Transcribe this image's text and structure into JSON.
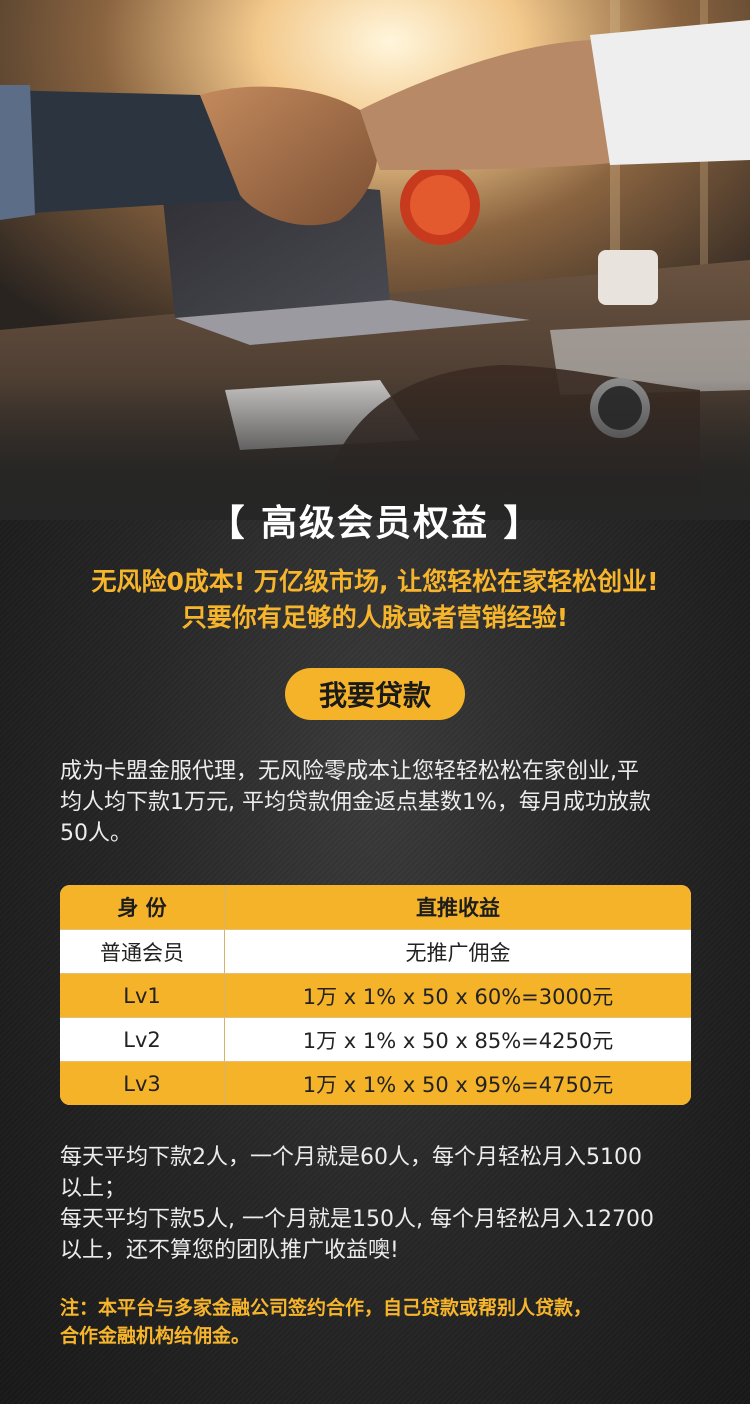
{
  "header": {
    "title": "【 高级会员权益 】",
    "slogan_line1": "无风险0成本! 万亿级市场, 让您轻松在家轻松创业!",
    "slogan_line2": "只要你有足够的人脉或者营销经验!"
  },
  "cta": {
    "label": "我要贷款"
  },
  "intro": {
    "line1": "成为卡盟金服代理，无风险零成本让您轻轻松松在家创业,平",
    "line2": "均人均下款1万元, 平均贷款佣金返点基数1%，每月成功放款",
    "line3": "50人。"
  },
  "table": {
    "headers": [
      "身 份",
      "直推收益"
    ],
    "rows": [
      [
        "普通会员",
        "无推广佣金"
      ],
      [
        "Lv1",
        "1万 x 1% x 50 x 60%=3000元"
      ],
      [
        "Lv2",
        "1万 x 1% x 50 x 85%=4250元"
      ],
      [
        "Lv3",
        "1万 x 1% x 50 x 95%=4750元"
      ]
    ]
  },
  "summary": {
    "line1": "每天平均下款2人，一个月就是60人，每个月轻松月入5100",
    "line2": "以上；",
    "line3": "每天平均下款5人, 一个月就是150人, 每个月轻松月入12700",
    "line4": "以上，还不算您的团队推广收益噢!"
  },
  "note": {
    "line1": "注：本平台与多家金融公司签约合作，自己贷款或帮别人贷款，",
    "line2": "合作金融机构给佣金。"
  },
  "colors": {
    "accent": "#f5b32a",
    "background": "#262626",
    "text": "#ececec"
  }
}
